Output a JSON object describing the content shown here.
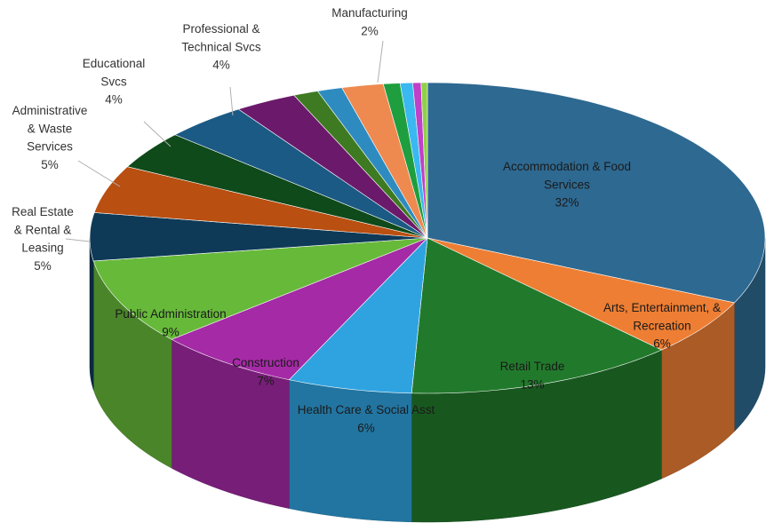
{
  "chart_data": {
    "type": "pie",
    "style": "3d-exploded-none",
    "slices": [
      {
        "name": "Accommodation & Food Services",
        "label_lines": [
          "Accommodation & Food",
          "Services",
          "32%"
        ],
        "value": 32,
        "color": "#2E6991",
        "label_mode": "inside"
      },
      {
        "name": "Arts, Entertainment, & Recreation",
        "label_lines": [
          "Arts, Entertainment, &",
          "Recreation",
          "6%"
        ],
        "value": 6,
        "color": "#EE7E33",
        "label_mode": "inside"
      },
      {
        "name": "Retail Trade",
        "label_lines": [
          "Retail Trade",
          "13%"
        ],
        "value": 13,
        "color": "#217A2B",
        "label_mode": "inside"
      },
      {
        "name": "Health Care & Social Asst",
        "label_lines": [
          "Health Care & Social Asst",
          "6%"
        ],
        "value": 6,
        "color": "#2FA3E0",
        "label_mode": "inside"
      },
      {
        "name": "Construction",
        "label_lines": [
          "Construction",
          "7%"
        ],
        "value": 7,
        "color": "#A52AA6",
        "label_mode": "inside"
      },
      {
        "name": "Public Administration",
        "label_lines": [
          "Public Administration",
          "9%"
        ],
        "value": 9,
        "color": "#67B93A",
        "label_mode": "inside"
      },
      {
        "name": "Real Estate & Rental & Leasing",
        "label_lines": [
          "Real Estate",
          "& Rental &",
          "Leasing",
          "5%"
        ],
        "value": 5,
        "color": "#0E3A58",
        "label_mode": "outside"
      },
      {
        "name": "Administrative & Waste Services",
        "label_lines": [
          "Administrative",
          "& Waste",
          "Services",
          "5%"
        ],
        "value": 5,
        "color": "#B94F11",
        "label_mode": "outside"
      },
      {
        "name": "Educational Svcs",
        "label_lines": [
          "Educational",
          "Svcs",
          "4%"
        ],
        "value": 4,
        "color": "#0F4A1A",
        "label_mode": "outside"
      },
      {
        "name": "Professional & Technical Svcs",
        "label_lines": [
          "Professional &",
          "Technical Svcs",
          "4%"
        ],
        "value": 4,
        "color": "#1B5A84",
        "label_mode": "outside"
      },
      {
        "name": "",
        "label_lines": [],
        "value": 3,
        "color": "#6B1A6B",
        "label_mode": "none"
      },
      {
        "name": "",
        "label_lines": [],
        "value": 1.2,
        "color": "#3E7A22",
        "label_mode": "none"
      },
      {
        "name": "",
        "label_lines": [],
        "value": 1.2,
        "color": "#2E8BC0",
        "label_mode": "none"
      },
      {
        "name": "Manufacturing",
        "label_lines": [
          "Manufacturing",
          "2%"
        ],
        "value": 2,
        "color": "#EE8A50",
        "label_mode": "outside"
      },
      {
        "name": "",
        "label_lines": [],
        "value": 0.8,
        "color": "#1E9E3E",
        "label_mode": "none"
      },
      {
        "name": "",
        "label_lines": [],
        "value": 0.6,
        "color": "#3AB8F0",
        "label_mode": "none"
      },
      {
        "name": "",
        "label_lines": [],
        "value": 0.4,
        "color": "#C040C8",
        "label_mode": "none"
      },
      {
        "name": "",
        "label_lines": [],
        "value": 0.3,
        "color": "#8FD04A",
        "label_mode": "none"
      }
    ],
    "title": "",
    "legend": "none"
  }
}
